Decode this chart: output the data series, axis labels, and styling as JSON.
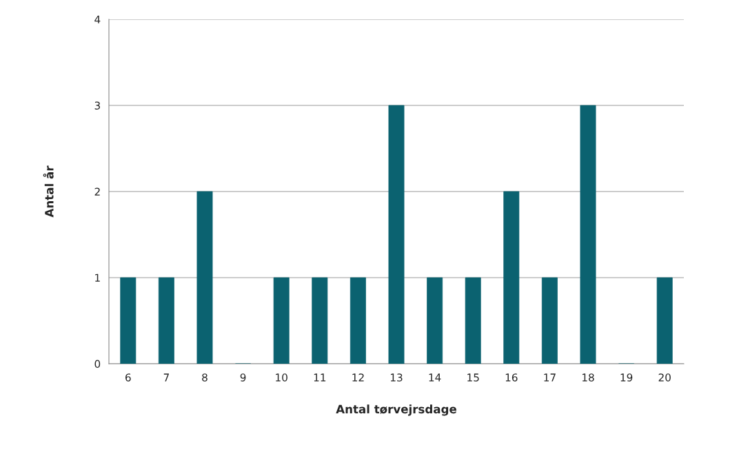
{
  "chart_data": {
    "type": "bar",
    "xlabel": "Antal tørvejrsdage",
    "ylabel": "Antal år",
    "categories": [
      "6",
      "7",
      "8",
      "9",
      "10",
      "11",
      "12",
      "13",
      "14",
      "15",
      "16",
      "17",
      "18",
      "19",
      "20"
    ],
    "values": [
      1,
      1,
      2,
      0,
      1,
      1,
      1,
      3,
      1,
      1,
      2,
      1,
      3,
      0,
      1
    ],
    "color": "#0b6270",
    "ylim": [
      0,
      4
    ],
    "yticks": [
      0,
      1,
      2,
      3,
      4
    ],
    "grid": "y"
  }
}
